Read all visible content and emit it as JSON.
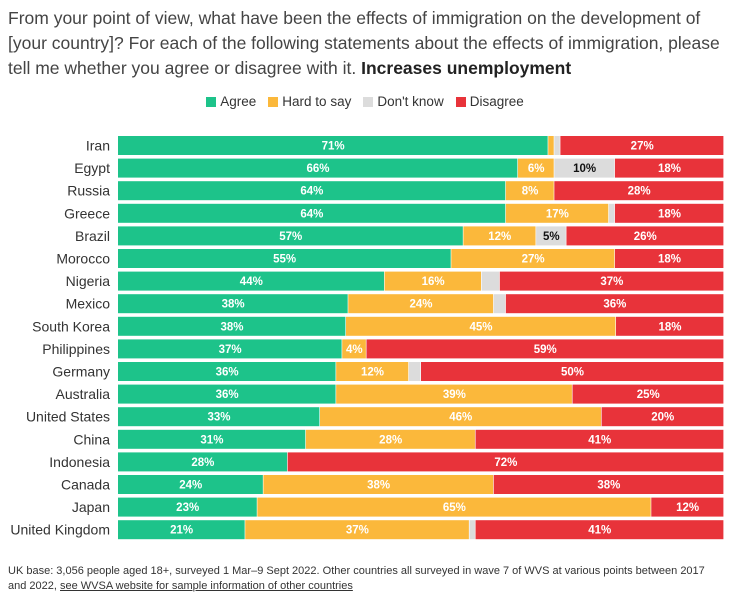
{
  "title": {
    "question": "From your point of view, what have been the effects of immigration on the development of [your country]? For each of the following statements about the effects of immigration, please tell me whether you agree or disagree with it.",
    "statement": "Increases unemployment"
  },
  "legend": [
    {
      "label": "Agree",
      "color": "#1dc38a"
    },
    {
      "label": "Hard to say",
      "color": "#fbb83b"
    },
    {
      "label": "Don't know",
      "color": "#dcdcdc"
    },
    {
      "label": "Disagree",
      "color": "#e8333a"
    }
  ],
  "footer": {
    "text": "UK base: 3,056 people aged 18+, surveyed 1 Mar–9 Sept 2022. Other countries all surveyed in wave 7 of WVS at various points between 2017 and 2022, ",
    "link_text": "see WVSA website for sample information of other countries"
  },
  "chart_data": {
    "type": "bar",
    "orientation": "horizontal",
    "stacked": true,
    "xlim": [
      0,
      100
    ],
    "unit": "%",
    "categories": [
      "Iran",
      "Egypt",
      "Russia",
      "Greece",
      "Brazil",
      "Morocco",
      "Nigeria",
      "Mexico",
      "South Korea",
      "Philippines",
      "Germany",
      "Australia",
      "United States",
      "China",
      "Indonesia",
      "Canada",
      "Japan",
      "United Kingdom"
    ],
    "series": [
      {
        "name": "Agree",
        "color": "#1dc38a",
        "label_color": "#ffffff",
        "values": [
          71,
          66,
          64,
          64,
          57,
          55,
          44,
          38,
          38,
          37,
          36,
          36,
          33,
          31,
          28,
          24,
          23,
          21
        ]
      },
      {
        "name": "Hard to say",
        "color": "#fbb83b",
        "label_color": "#ffffff",
        "values": [
          1,
          6,
          8,
          17,
          12,
          27,
          16,
          24,
          45,
          4,
          12,
          39,
          46,
          28,
          0,
          38,
          65,
          37
        ]
      },
      {
        "name": "Don't know",
        "color": "#dcdcdc",
        "label_color": "#111111",
        "values": [
          1,
          10,
          0,
          1,
          5,
          0,
          3,
          2,
          0,
          0,
          2,
          0,
          0,
          0,
          0,
          0,
          0,
          1
        ]
      },
      {
        "name": "Disagree",
        "color": "#e8333a",
        "label_color": "#ffffff",
        "values": [
          27,
          18,
          28,
          18,
          26,
          18,
          37,
          36,
          18,
          59,
          50,
          25,
          20,
          41,
          72,
          38,
          12,
          41
        ]
      }
    ],
    "labels": [
      [
        "71%",
        "",
        "",
        "27%"
      ],
      [
        "66%",
        "6%",
        "10%",
        "18%"
      ],
      [
        "64%",
        "8%",
        "",
        "28%"
      ],
      [
        "64%",
        "17%",
        "",
        "18%"
      ],
      [
        "57%",
        "12%",
        "5%",
        "26%"
      ],
      [
        "55%",
        "27%",
        "",
        "18%"
      ],
      [
        "44%",
        "16%",
        "",
        "37%"
      ],
      [
        "38%",
        "24%",
        "",
        "36%"
      ],
      [
        "38%",
        "45%",
        "",
        "18%"
      ],
      [
        "37%",
        "4%",
        "",
        "59%"
      ],
      [
        "36%",
        "12%",
        "",
        "50%"
      ],
      [
        "36%",
        "39%",
        "",
        "25%"
      ],
      [
        "33%",
        "46%",
        "",
        "20%"
      ],
      [
        "31%",
        "28%",
        "",
        "41%"
      ],
      [
        "28%",
        "",
        "",
        "72%"
      ],
      [
        "24%",
        "38%",
        "",
        "38%"
      ],
      [
        "23%",
        "65%",
        "",
        "12%"
      ],
      [
        "21%",
        "37%",
        "",
        "41%"
      ]
    ],
    "legend_position": "top-center",
    "grid": false
  }
}
